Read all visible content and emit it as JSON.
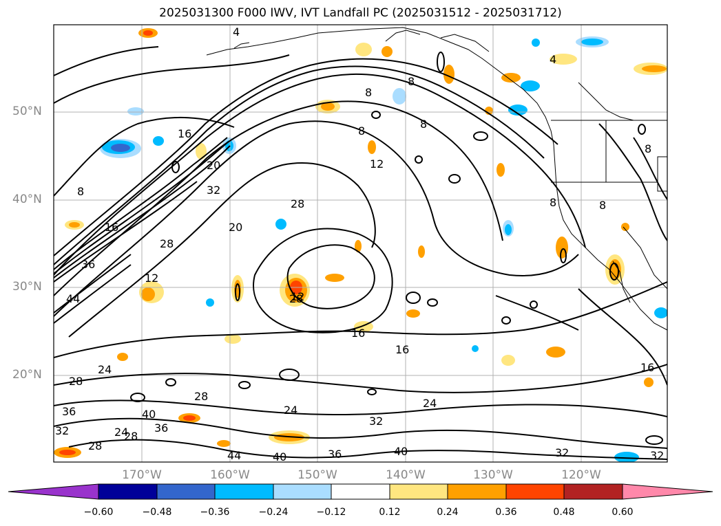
{
  "title": "2025031300 F000 IWV, IVT Landfall PC (2025031512 - 2025031712)",
  "lat_labels": [
    "50°N",
    "40°N",
    "30°N",
    "20°N"
  ],
  "lon_labels": [
    "170°W",
    "160°W",
    "150°W",
    "140°W",
    "130°W",
    "120°W"
  ],
  "colorbar": {
    "ticks": [
      "−0.60",
      "−0.48",
      "−0.36",
      "−0.24",
      "−0.12",
      "0.12",
      "0.24",
      "0.36",
      "0.48",
      "0.60"
    ],
    "colors": [
      "#9933cc",
      "#000099",
      "#3366cc",
      "#00bbff",
      "#aaddff",
      "#ffffff",
      "#ffe680",
      "#ffa000",
      "#ff4400",
      "#b22222",
      "#ff88aa"
    ]
  },
  "contour_labels": [
    "16",
    "8",
    "20",
    "32",
    "36",
    "28",
    "44",
    "12",
    "16",
    "28",
    "12",
    "20",
    "28",
    "24",
    "28",
    "40",
    "36",
    "24",
    "28",
    "28",
    "24",
    "32",
    "16",
    "24",
    "32",
    "40",
    "36",
    "40",
    "44",
    "32",
    "8",
    "8",
    "8",
    "8",
    "8",
    "8",
    "8",
    "4",
    "4",
    "16",
    "12",
    "36",
    "28",
    "32",
    "16"
  ],
  "colors": {
    "contour": "#000000",
    "grid": "#b0b0b0",
    "coast": "#000000",
    "label": "#888888"
  }
}
